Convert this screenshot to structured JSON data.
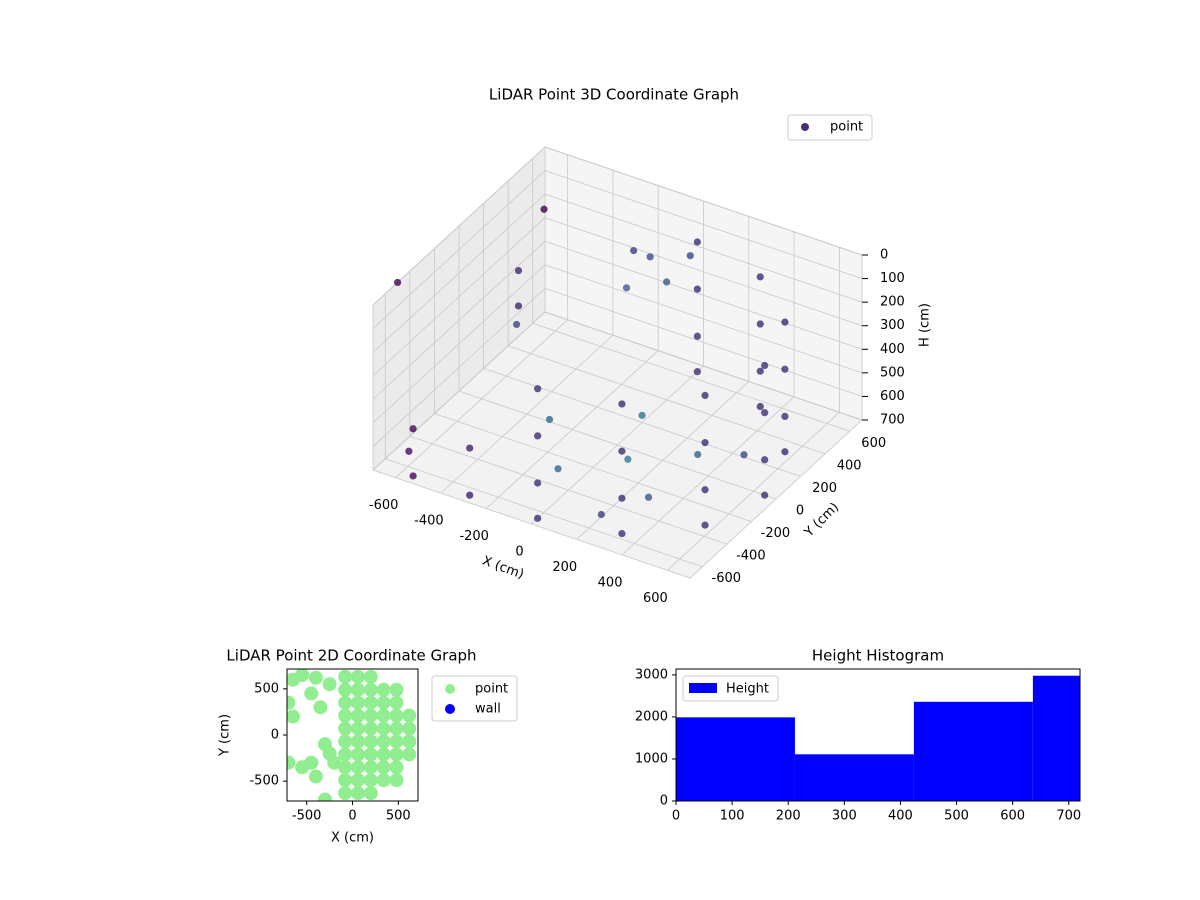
{
  "chart_data": [
    {
      "type": "scatter3d",
      "title": "LiDAR Point 3D Coordinate Graph",
      "xlabel": "X (cm)",
      "ylabel": "Y (cm)",
      "zlabel": "H (cm)",
      "xlim": [
        -700,
        700
      ],
      "ylim": [
        -700,
        700
      ],
      "zlim": [
        700,
        0
      ],
      "xticks": [
        -600,
        -400,
        -200,
        0,
        200,
        400,
        600
      ],
      "yticks": [
        -600,
        -400,
        -200,
        0,
        200,
        400,
        600
      ],
      "zticks": [
        0,
        100,
        200,
        300,
        400,
        500,
        600,
        700
      ],
      "grid": true,
      "legend": "upper right",
      "colormap": "viridis",
      "series": [
        {
          "name": "point",
          "color": "#472d7b",
          "x": [
            0,
            0,
            0,
            0,
            325,
            325,
            325,
            325,
            563,
            563,
            563,
            563,
            650,
            650,
            650,
            650,
            563,
            563,
            563,
            563,
            325,
            325,
            325,
            325,
            0,
            0,
            0,
            0,
            -300,
            -300,
            -550,
            -550,
            -600,
            -600,
            -500,
            -650,
            -100,
            0,
            -200,
            50,
            -150,
            100,
            300,
            300,
            0,
            -100,
            200,
            450,
            -300,
            -700,
            -650
          ],
          "y": [
            -650,
            -650,
            -650,
            -650,
            -563,
            -563,
            -563,
            -563,
            -325,
            -325,
            -325,
            -325,
            0,
            0,
            0,
            0,
            325,
            325,
            325,
            325,
            563,
            563,
            563,
            563,
            650,
            650,
            650,
            650,
            -650,
            -650,
            -650,
            -650,
            300,
            300,
            100,
            600,
            450,
            400,
            500,
            500,
            350,
            -100,
            -300,
            100,
            200,
            -300,
            -500,
            200,
            0,
            -500,
            -500
          ],
          "z": [
            150,
            350,
            550,
            700,
            150,
            350,
            550,
            700,
            150,
            350,
            550,
            700,
            150,
            350,
            550,
            700,
            150,
            350,
            550,
            700,
            150,
            350,
            550,
            700,
            150,
            350,
            550,
            700,
            500,
            700,
            500,
            700,
            300,
            450,
            400,
            200,
            150,
            200,
            180,
            120,
            250,
            680,
            680,
            690,
            670,
            690,
            690,
            690,
            690,
            0,
            700
          ]
        }
      ]
    },
    {
      "type": "scatter",
      "title": "LiDAR Point 2D Coordinate Graph",
      "xlabel": "X (cm)",
      "ylabel": "Y (cm)",
      "xlim": [
        -715,
        715
      ],
      "ylim": [
        -715,
        715
      ],
      "xticks": [
        -500,
        0,
        500
      ],
      "yticks": [
        -500,
        0,
        500
      ],
      "legend": "outside right",
      "series": [
        {
          "name": "point",
          "color": "#90ee90",
          "x": [
            -80,
            -80,
            -80,
            -80,
            -80,
            -80,
            -80,
            -80,
            -80,
            -80,
            60,
            60,
            60,
            60,
            60,
            60,
            60,
            60,
            60,
            60,
            200,
            200,
            200,
            200,
            200,
            200,
            200,
            200,
            200,
            200,
            340,
            340,
            340,
            340,
            340,
            340,
            340,
            340,
            480,
            480,
            480,
            480,
            480,
            480,
            480,
            480,
            620,
            620,
            620,
            620,
            -650,
            -550,
            -400,
            -700,
            -650,
            -450,
            -350,
            -300,
            -250,
            -700,
            -550,
            -400,
            -450,
            -300,
            -200,
            -250
          ],
          "y": [
            -630,
            -490,
            -350,
            -210,
            -70,
            70,
            210,
            350,
            490,
            630,
            -630,
            -490,
            -350,
            -210,
            -70,
            70,
            210,
            350,
            490,
            630,
            -630,
            -490,
            -350,
            -210,
            -70,
            70,
            210,
            350,
            490,
            630,
            -490,
            -350,
            -210,
            -70,
            70,
            210,
            350,
            490,
            -490,
            -350,
            -210,
            -70,
            70,
            210,
            350,
            490,
            -210,
            -70,
            70,
            210,
            600,
            650,
            620,
            350,
            200,
            450,
            300,
            -100,
            -200,
            -300,
            -350,
            -450,
            -300,
            -700,
            -300,
            550
          ]
        },
        {
          "name": "wall",
          "color": "#0000ff",
          "x": [],
          "y": []
        }
      ]
    },
    {
      "type": "histogram",
      "title": "Height Histogram",
      "name": "Height",
      "color": "#0000ff",
      "bins": [
        0,
        212,
        424,
        636,
        720
      ],
      "values": [
        1990,
        1110,
        2360,
        2980
      ],
      "xlim": [
        0,
        720
      ],
      "ylim": [
        0,
        3140
      ],
      "xticks": [
        0,
        100,
        200,
        300,
        400,
        500,
        600,
        700
      ],
      "yticks": [
        0,
        1000,
        2000,
        3000
      ],
      "legend": "upper left"
    }
  ]
}
